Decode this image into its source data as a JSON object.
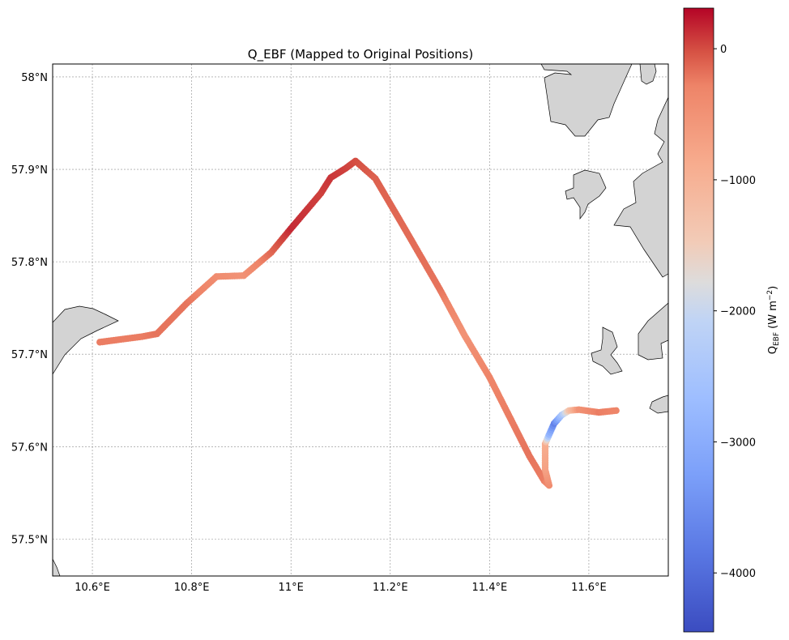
{
  "chart_data": {
    "type": "scatter",
    "title": "Q_EBF (Mapped to Original Positions)",
    "xlim": [
      10.52,
      11.76
    ],
    "ylim": [
      57.46,
      58.014
    ],
    "grid": true,
    "x_ticks": [
      {
        "value": 10.6,
        "label": "10.6°E"
      },
      {
        "value": 10.8,
        "label": "10.8°E"
      },
      {
        "value": 11.0,
        "label": "11°E"
      },
      {
        "value": 11.2,
        "label": "11.2°E"
      },
      {
        "value": 11.4,
        "label": "11.4°E"
      },
      {
        "value": 11.6,
        "label": "11.6°E"
      }
    ],
    "y_ticks": [
      {
        "value": 57.5,
        "label": "57.5°N"
      },
      {
        "value": 57.6,
        "label": "57.6°N"
      },
      {
        "value": 57.7,
        "label": "57.7°N"
      },
      {
        "value": 57.8,
        "label": "57.8°N"
      },
      {
        "value": 57.9,
        "label": "57.9°N"
      },
      {
        "value": 58.0,
        "label": "58°N"
      }
    ],
    "colorbar": {
      "label_main": "Q",
      "label_sub": "EBF",
      "label_units": " (W m",
      "label_exp": "−2",
      "label_close": ")",
      "range": [
        -4450,
        310
      ],
      "colormap": "coolwarm",
      "ticks": [
        {
          "value": 0,
          "label": "0"
        },
        {
          "value": -1000,
          "label": "−1000"
        },
        {
          "value": -2000,
          "label": "−2000"
        },
        {
          "value": -3000,
          "label": "−3000"
        },
        {
          "value": -4000,
          "label": "−4000"
        }
      ]
    },
    "track": [
      {
        "lon": 10.615,
        "lat": 57.713,
        "value": -250
      },
      {
        "lon": 10.7,
        "lat": 57.719,
        "value": -250
      },
      {
        "lon": 10.73,
        "lat": 57.722,
        "value": -200
      },
      {
        "lon": 10.79,
        "lat": 57.755,
        "value": -200
      },
      {
        "lon": 10.85,
        "lat": 57.784,
        "value": -400
      },
      {
        "lon": 10.905,
        "lat": 57.785,
        "value": -500
      },
      {
        "lon": 10.96,
        "lat": 57.81,
        "value": -150
      },
      {
        "lon": 11.0,
        "lat": 57.836,
        "value": 150
      },
      {
        "lon": 11.06,
        "lat": 57.874,
        "value": 50
      },
      {
        "lon": 11.08,
        "lat": 57.891,
        "value": 100
      },
      {
        "lon": 11.11,
        "lat": 57.901,
        "value": 50
      },
      {
        "lon": 11.13,
        "lat": 57.909,
        "value": 0
      },
      {
        "lon": 11.17,
        "lat": 57.89,
        "value": -100
      },
      {
        "lon": 11.23,
        "lat": 57.835,
        "value": -150
      },
      {
        "lon": 11.3,
        "lat": 57.77,
        "value": -200
      },
      {
        "lon": 11.35,
        "lat": 57.72,
        "value": -500
      },
      {
        "lon": 11.4,
        "lat": 57.675,
        "value": -300
      },
      {
        "lon": 11.48,
        "lat": 57.59,
        "value": -200
      },
      {
        "lon": 11.51,
        "lat": 57.563,
        "value": -250
      },
      {
        "lon": 11.52,
        "lat": 57.558,
        "value": -400
      },
      {
        "lon": 11.512,
        "lat": 57.575,
        "value": -700
      },
      {
        "lon": 11.512,
        "lat": 57.603,
        "value": -900
      },
      {
        "lon": 11.52,
        "lat": 57.613,
        "value": -2800
      },
      {
        "lon": 11.53,
        "lat": 57.625,
        "value": -3700
      },
      {
        "lon": 11.545,
        "lat": 57.634,
        "value": -2500
      },
      {
        "lon": 11.56,
        "lat": 57.639,
        "value": -1300
      },
      {
        "lon": 11.58,
        "lat": 57.64,
        "value": -500
      },
      {
        "lon": 11.62,
        "lat": 57.637,
        "value": -250
      },
      {
        "lon": 11.655,
        "lat": 57.639,
        "value": -300
      }
    ]
  }
}
